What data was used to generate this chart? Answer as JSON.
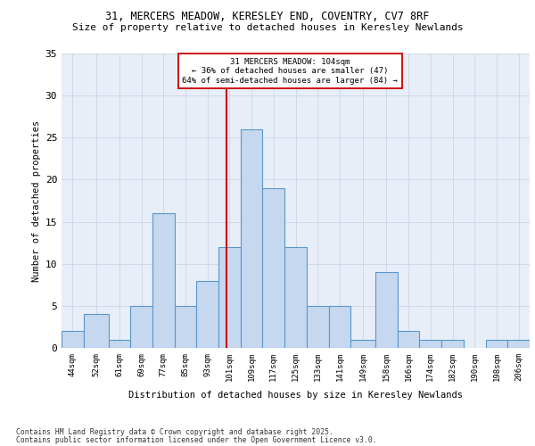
{
  "title1": "31, MERCERS MEADOW, KERESLEY END, COVENTRY, CV7 8RF",
  "title2": "Size of property relative to detached houses in Keresley Newlands",
  "xlabel": "Distribution of detached houses by size in Keresley Newlands",
  "ylabel": "Number of detached properties",
  "categories": [
    "44sqm",
    "52sqm",
    "61sqm",
    "69sqm",
    "77sqm",
    "85sqm",
    "93sqm",
    "101sqm",
    "109sqm",
    "117sqm",
    "125sqm",
    "133sqm",
    "141sqm",
    "149sqm",
    "158sqm",
    "166sqm",
    "174sqm",
    "182sqm",
    "190sqm",
    "198sqm",
    "206sqm"
  ],
  "values": [
    2,
    4,
    1,
    5,
    16,
    5,
    8,
    12,
    26,
    19,
    12,
    5,
    5,
    1,
    9,
    2,
    1,
    1,
    0,
    1,
    1
  ],
  "bar_color": "#c5d8f0",
  "bar_edge_color": "#5a96cc",
  "bin_edges": [
    44,
    52,
    61,
    69,
    77,
    85,
    93,
    101,
    109,
    117,
    125,
    133,
    141,
    149,
    158,
    166,
    174,
    182,
    190,
    198,
    206,
    214
  ],
  "annotation_text": "31 MERCERS MEADOW: 104sqm\n← 36% of detached houses are smaller (47)\n64% of semi-detached houses are larger (84) →",
  "annotation_box_color": "#ffffff",
  "annotation_box_edge_color": "#cc0000",
  "vline_color": "#cc0000",
  "grid_color": "#d0d8e8",
  "bg_color": "#e8eef8",
  "footer1": "Contains HM Land Registry data © Crown copyright and database right 2025.",
  "footer2": "Contains public sector information licensed under the Open Government Licence v3.0.",
  "ylim": [
    0,
    35
  ],
  "yticks": [
    0,
    5,
    10,
    15,
    20,
    25,
    30,
    35
  ]
}
